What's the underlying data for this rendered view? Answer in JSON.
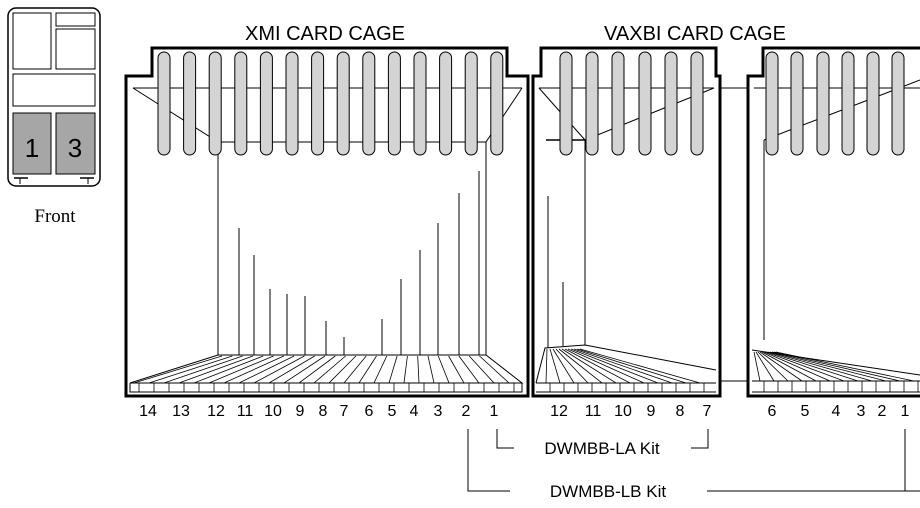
{
  "cabinet": {
    "front_label": "Front",
    "slot_labels": [
      "1",
      "3"
    ]
  },
  "xmi_cage": {
    "title": "XMI CARD CAGE",
    "slot_numbers": [
      "14",
      "13",
      "12",
      "11",
      "10",
      "9",
      "8",
      "7",
      "6",
      "5",
      "4",
      "3",
      "2",
      "1"
    ]
  },
  "vaxbi_cage": {
    "title": "VAXBI CARD CAGE",
    "left_slot_numbers": [
      "12",
      "11",
      "10",
      "9",
      "8",
      "7"
    ],
    "right_slot_numbers": [
      "6",
      "5",
      "4",
      "3",
      "2",
      "1"
    ]
  },
  "kits": {
    "la_label": "DWMBB-LA Kit",
    "lb_label": "DWMBB-LB Kit"
  },
  "colors": {
    "panel_fill": "#d4d4d4",
    "slot_fill": "#a6a6a6",
    "line": "#000000"
  }
}
